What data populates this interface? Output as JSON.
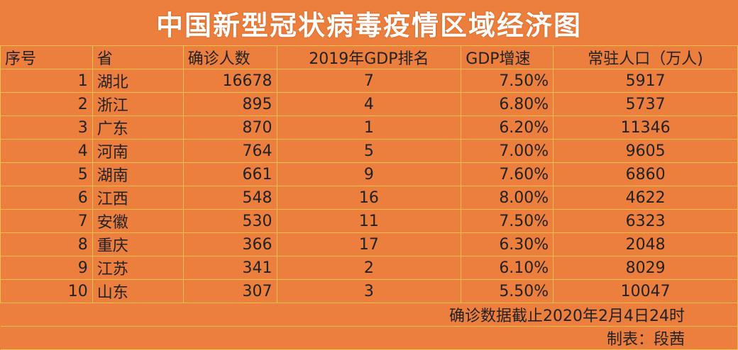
{
  "title": "中国新型冠状病毒疫情区域经济图",
  "headers": {
    "idx": "序号",
    "province": "省",
    "confirmed": "确诊人数",
    "gdp_rank": "2019年GDP排名",
    "gdp_growth": "GDP增速",
    "population": "常驻人口（万人)"
  },
  "rows": [
    {
      "idx": "1",
      "province": "湖北",
      "confirmed": "16678",
      "gdp_rank": "7",
      "gdp_growth": "7.50%",
      "population": "5917"
    },
    {
      "idx": "2",
      "province": "浙江",
      "confirmed": "895",
      "gdp_rank": "4",
      "gdp_growth": "6.80%",
      "population": "5737"
    },
    {
      "idx": "3",
      "province": "广东",
      "confirmed": "870",
      "gdp_rank": "1",
      "gdp_growth": "6.20%",
      "population": "11346"
    },
    {
      "idx": "4",
      "province": "河南",
      "confirmed": "764",
      "gdp_rank": "5",
      "gdp_growth": "7.00%",
      "population": "9605"
    },
    {
      "idx": "5",
      "province": "湖南",
      "confirmed": "661",
      "gdp_rank": "9",
      "gdp_growth": "7.60%",
      "population": "6860"
    },
    {
      "idx": "6",
      "province": "江西",
      "confirmed": "548",
      "gdp_rank": "16",
      "gdp_growth": "8.00%",
      "population": "4622"
    },
    {
      "idx": "7",
      "province": "安徽",
      "confirmed": "530",
      "gdp_rank": "11",
      "gdp_growth": "7.50%",
      "population": "6323"
    },
    {
      "idx": "8",
      "province": "重庆",
      "confirmed": "366",
      "gdp_rank": "17",
      "gdp_growth": "6.30%",
      "population": "2048"
    },
    {
      "idx": "9",
      "province": "江苏",
      "confirmed": "341",
      "gdp_rank": "2",
      "gdp_growth": "6.10%",
      "population": "8029"
    },
    {
      "idx": "10",
      "province": "山东",
      "confirmed": "307",
      "gdp_rank": "3",
      "gdp_growth": "5.50%",
      "population": "10047"
    }
  ],
  "footnote_date": "确诊数据截止2020年2月4日24时",
  "footnote_author": "制表：段茜",
  "colors": {
    "background": "#ec7f3d",
    "grid": "#f6c34a",
    "title": "#ffffff"
  }
}
